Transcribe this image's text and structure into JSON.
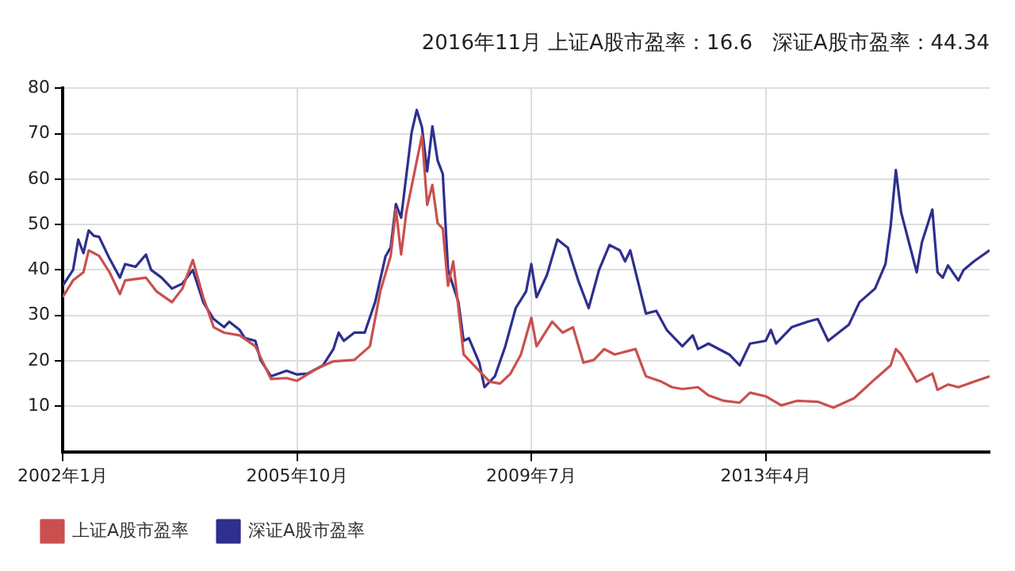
{
  "chart_data": {
    "type": "line",
    "title": "2016年11月 上证A股市盈率：16.6   深证A股市盈率：44.34",
    "xlim": [
      "2002-01",
      "2016-11"
    ],
    "xticks": [
      {
        "value": "2002-01",
        "label": "2002年1月"
      },
      {
        "value": "2005-10",
        "label": "2005年10月"
      },
      {
        "value": "2009-07",
        "label": "2009年7月"
      },
      {
        "value": "2013-04",
        "label": "2013年4月"
      }
    ],
    "ylim": [
      0,
      80
    ],
    "yticks": [
      10,
      20,
      30,
      40,
      50,
      60,
      70,
      80
    ],
    "grid": true,
    "legend": "bottom left",
    "marker": "none",
    "line_style": "solid",
    "series": [
      {
        "name": "上证A股市盈率",
        "color": "#c9504f",
        "x": [
          "2002-01",
          "2002-03",
          "2002-05",
          "2002-06",
          "2002-08",
          "2002-10",
          "2002-12",
          "2003-01",
          "2003-05",
          "2003-07",
          "2003-10",
          "2003-12",
          "2004-02",
          "2004-04",
          "2004-06",
          "2004-08",
          "2004-11",
          "2005-02",
          "2005-04",
          "2005-05",
          "2005-08",
          "2005-10",
          "2006-02",
          "2006-05",
          "2006-09",
          "2006-12",
          "2007-02",
          "2007-04",
          "2007-05",
          "2007-06",
          "2007-07",
          "2007-10",
          "2007-11",
          "2007-12",
          "2008-01",
          "2008-02",
          "2008-03",
          "2008-04",
          "2008-06",
          "2008-07",
          "2008-09",
          "2008-11",
          "2009-01",
          "2009-03",
          "2009-05",
          "2009-07",
          "2009-08",
          "2009-11",
          "2010-01",
          "2010-03",
          "2010-05",
          "2010-07",
          "2010-09",
          "2010-11",
          "2011-03",
          "2011-05",
          "2011-08",
          "2011-10",
          "2011-12",
          "2012-03",
          "2012-05",
          "2012-08",
          "2012-11",
          "2013-01",
          "2013-04",
          "2013-07",
          "2013-10",
          "2014-02",
          "2014-05",
          "2014-09",
          "2015-01",
          "2015-04",
          "2015-05",
          "2015-06",
          "2015-09",
          "2015-12",
          "2016-01",
          "2016-03",
          "2016-05",
          "2016-08",
          "2016-11"
        ],
        "values": [
          34,
          37.7,
          39.5,
          44.3,
          43.1,
          39.5,
          34.7,
          37.7,
          38.3,
          35.3,
          32.9,
          35.9,
          42.2,
          34,
          27.4,
          26.2,
          25.6,
          23.2,
          18.4,
          16,
          16.2,
          15.6,
          18.4,
          19.9,
          20.2,
          23.2,
          35.3,
          43.1,
          53.3,
          43.4,
          52.7,
          69.6,
          54.3,
          58.7,
          50.3,
          49.1,
          36.5,
          41.9,
          21.4,
          20.2,
          17.8,
          15.4,
          15,
          17.2,
          21.4,
          29.5,
          23.2,
          28.6,
          26.2,
          27.4,
          19.6,
          20.2,
          22.6,
          21.4,
          22.6,
          16.6,
          15.4,
          14.2,
          13.8,
          14.2,
          12.4,
          11.2,
          10.8,
          13,
          12.2,
          10.2,
          11.2,
          11,
          9.7,
          11.8,
          16,
          19,
          22.6,
          21.4,
          15.4,
          17.2,
          13.6,
          14.8,
          14.2,
          15.4,
          16.6
        ]
      },
      {
        "name": "深证A股市盈率",
        "color": "#2e2f8f",
        "x": [
          "2002-01",
          "2002-03",
          "2002-04",
          "2002-05",
          "2002-06",
          "2002-07",
          "2002-08",
          "2002-10",
          "2002-12",
          "2003-01",
          "2003-03",
          "2003-05",
          "2003-06",
          "2003-08",
          "2003-10",
          "2003-12",
          "2004-02",
          "2004-04",
          "2004-06",
          "2004-08",
          "2004-09",
          "2004-11",
          "2004-12",
          "2005-02",
          "2005-03",
          "2005-05",
          "2005-08",
          "2005-10",
          "2005-12",
          "2006-03",
          "2006-05",
          "2006-06",
          "2006-07",
          "2006-09",
          "2006-11",
          "2007-01",
          "2007-03",
          "2007-04",
          "2007-05",
          "2007-06",
          "2007-08",
          "2007-09",
          "2007-10",
          "2007-11",
          "2007-12",
          "2008-01",
          "2008-02",
          "2008-03",
          "2008-05",
          "2008-06",
          "2008-07",
          "2008-09",
          "2008-10",
          "2008-12",
          "2009-02",
          "2009-04",
          "2009-06",
          "2009-07",
          "2009-08",
          "2009-10",
          "2009-12",
          "2010-02",
          "2010-04",
          "2010-06",
          "2010-08",
          "2010-10",
          "2010-12",
          "2011-01",
          "2011-02",
          "2011-05",
          "2011-07",
          "2011-09",
          "2011-12",
          "2012-02",
          "2012-03",
          "2012-05",
          "2012-09",
          "2012-11",
          "2013-01",
          "2013-04",
          "2013-05",
          "2013-06",
          "2013-09",
          "2013-12",
          "2014-02",
          "2014-04",
          "2014-08",
          "2014-10",
          "2015-01",
          "2015-03",
          "2015-04",
          "2015-05",
          "2015-06",
          "2015-09",
          "2015-10",
          "2015-12",
          "2016-01",
          "2016-02",
          "2016-03",
          "2016-05",
          "2016-06",
          "2016-08",
          "2016-11"
        ],
        "values": [
          36.5,
          40,
          46.7,
          43.7,
          48.7,
          47.5,
          47.3,
          42.5,
          38.3,
          41.3,
          40.7,
          43.4,
          40,
          38.3,
          35.9,
          37,
          40,
          32.9,
          29.2,
          27.4,
          28.6,
          26.8,
          25,
          24.4,
          20.2,
          16.6,
          17.8,
          17,
          17.2,
          19,
          22.6,
          26.2,
          24.4,
          26.2,
          26.2,
          32.9,
          43,
          45,
          54.5,
          51.5,
          70.2,
          75.2,
          71.4,
          61.7,
          71.6,
          64.1,
          61.1,
          40,
          32.9,
          24.4,
          25,
          19.6,
          14.2,
          16.6,
          23.2,
          31.6,
          35.3,
          41.3,
          34,
          38.9,
          46.7,
          44.9,
          37.7,
          31.6,
          40,
          45.5,
          44.3,
          41.9,
          44.3,
          30.4,
          31,
          26.8,
          23.2,
          25.6,
          22.6,
          23.8,
          21.4,
          19,
          23.8,
          24.4,
          26.8,
          23.8,
          27.4,
          28.6,
          29.2,
          24.4,
          28,
          32.9,
          35.9,
          41.3,
          49.7,
          62,
          52.7,
          39.5,
          46.1,
          53.3,
          39.5,
          38.3,
          41,
          37.7,
          40,
          41.9,
          44.34
        ]
      }
    ]
  }
}
